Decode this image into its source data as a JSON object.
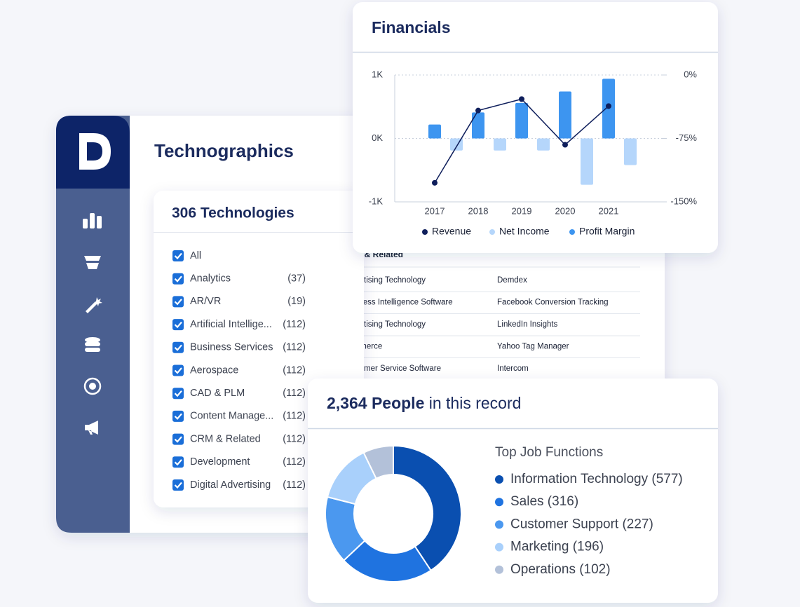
{
  "technographics": {
    "title": "Technographics",
    "panel_title": "306 Technologies",
    "filters": [
      {
        "label": "All"
      },
      {
        "label": "Analytics",
        "count": "(37)"
      },
      {
        "label": "AR/VR",
        "count": "(19)"
      },
      {
        "label": "Artificial Intellige...",
        "count": "(112)"
      },
      {
        "label": "Business Services",
        "count": "(112)"
      },
      {
        "label": "Aerospace",
        "count": "(112)"
      },
      {
        "label": "CAD & PLM",
        "count": "(112)"
      },
      {
        "label": "Content Manage...",
        "count": "(112)"
      },
      {
        "label": "CRM & Related",
        "count": "(112)"
      },
      {
        "label": "Development",
        "count": "(112)"
      },
      {
        "label": "Digital Advertising",
        "count": "(112)"
      }
    ],
    "table": {
      "header": "CRM & Related",
      "rows": [
        [
          "Advertising Technology",
          "Demdex"
        ],
        [
          "Business Intelligence Software",
          "Facebook Conversion Tracking"
        ],
        [
          "Advertising Technology",
          "LinkedIn Insights"
        ],
        [
          "Commerce",
          "Yahoo Tag Manager"
        ],
        [
          "Customer Service Software",
          "Intercom"
        ]
      ]
    }
  },
  "people": {
    "count": "2,364 People",
    "suffix": "in this record"
  },
  "chart_data": [
    {
      "type": "combo",
      "title": "Financials",
      "categories": [
        "2017",
        "2018",
        "2019",
        "2020",
        "2021"
      ],
      "series": [
        {
          "name": "Revenue",
          "type": "line",
          "color": "#0f1f5c",
          "values": [
            -700,
            440,
            620,
            -100,
            510
          ]
        },
        {
          "name": "Net Income",
          "type": "bar",
          "color": "#b5d6fb",
          "values": [
            -190,
            -190,
            -190,
            -730,
            -420
          ]
        },
        {
          "name": "Profit Margin",
          "type": "bar",
          "color": "#3d95f0",
          "values": [
            220,
            410,
            560,
            740,
            940
          ]
        }
      ],
      "ylim": [
        -1000,
        1000
      ],
      "yticks": [
        {
          "value": -1000,
          "label": "-1K"
        },
        {
          "value": 0,
          "label": "0K"
        },
        {
          "value": 1000,
          "label": "1K"
        }
      ],
      "y2lim": [
        -150,
        0
      ],
      "y2ticks": [
        {
          "value": -150,
          "label": "-150%"
        },
        {
          "value": -75,
          "label": "-75%"
        },
        {
          "value": 0,
          "label": "0%"
        }
      ],
      "grid": true
    },
    {
      "type": "pie",
      "title": "Top Job Functions",
      "values": [
        577,
        316,
        227,
        196,
        102
      ],
      "value_labels": [
        "Information Technology (577)",
        "Sales (316)",
        "Customer Support (227)",
        "Marketing (196)",
        "Operations (102)"
      ],
      "colors": [
        "#0a4fb0",
        "#1f73e0",
        "#4b98ef",
        "#a9d0fb",
        "#b3c1d9"
      ]
    }
  ]
}
